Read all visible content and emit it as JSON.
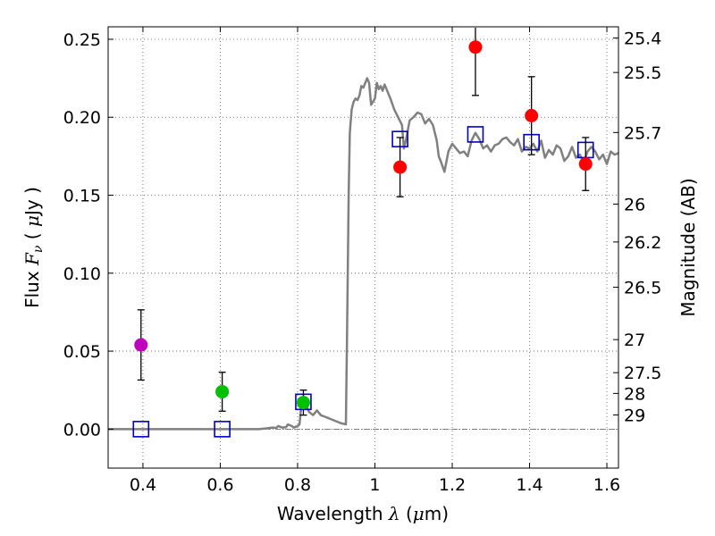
{
  "chart_data": {
    "type": "scatter",
    "xlabel_prefix": "Wavelength",
    "xlabel_symbol": "λ",
    "xlabel_unit_open": "(",
    "xlabel_unit_mu": "μ",
    "xlabel_unit_rest": "m)",
    "ylabel_prefix": "Flux",
    "ylabel_symbol": "F",
    "ylabel_subscript": "ν",
    "ylabel_unit_open": "(",
    "ylabel_unit_mu": "μ",
    "ylabel_unit_rest": "Jy )",
    "y2label": "Magnitude (AB)",
    "xlim": [
      0.31,
      1.63
    ],
    "ylim": [
      -0.025,
      0.258
    ],
    "grid": true,
    "xticks": [
      0.4,
      0.6,
      0.8,
      1.0,
      1.2,
      1.4,
      1.6
    ],
    "xtick_labels": [
      "0.4",
      "0.6",
      "0.8",
      "1",
      "1.2",
      "1.4",
      "1.6"
    ],
    "yticks": [
      0.0,
      0.05,
      0.1,
      0.15,
      0.2,
      0.25
    ],
    "ytick_labels": [
      "0.00",
      "0.05",
      "0.10",
      "0.15",
      "0.20",
      "0.25"
    ],
    "y2ticks": [
      {
        "label": "25.4",
        "flux": 0.2508
      },
      {
        "label": "25.5",
        "flux": 0.2287
      },
      {
        "label": "25.7",
        "flux": 0.1902
      },
      {
        "label": "26",
        "flux": 0.1443
      },
      {
        "label": "26.2",
        "flux": 0.12
      },
      {
        "label": "26.5",
        "flux": 0.091
      },
      {
        "label": "27",
        "flux": 0.0574
      },
      {
        "label": "27.5",
        "flux": 0.0362
      },
      {
        "label": "28",
        "flux": 0.0229
      },
      {
        "label": "29",
        "flux": 0.0091
      }
    ],
    "zero_line": 0.0,
    "observed": [
      {
        "x": 0.395,
        "y": 0.054,
        "err": 0.0225,
        "color": "#bf00bf"
      },
      {
        "x": 0.605,
        "y": 0.024,
        "err": 0.0125,
        "color": "#00c000"
      },
      {
        "x": 0.815,
        "y": 0.017,
        "err": 0.008,
        "color": "#00c000"
      },
      {
        "x": 1.065,
        "y": 0.168,
        "err": 0.019,
        "color": "#ff0000"
      },
      {
        "x": 1.26,
        "y": 0.245,
        "err": 0.031,
        "color": "#ff0000"
      },
      {
        "x": 1.405,
        "y": 0.201,
        "err": 0.025,
        "color": "#ff0000"
      },
      {
        "x": 1.545,
        "y": 0.17,
        "err": 0.017,
        "color": "#ff0000"
      }
    ],
    "model_points": {
      "color": "#0000c0",
      "x": [
        0.395,
        0.605,
        0.815,
        1.065,
        1.26,
        1.405,
        1.545
      ],
      "y": [
        0.0,
        0.0,
        0.0175,
        0.186,
        0.189,
        0.184,
        0.179
      ]
    },
    "template_sed": {
      "color": "#808080",
      "x": [
        0.31,
        0.7,
        0.72,
        0.735,
        0.745,
        0.75,
        0.76,
        0.77,
        0.775,
        0.785,
        0.79,
        0.8,
        0.805,
        0.81,
        0.815,
        0.82,
        0.83,
        0.84,
        0.85,
        0.86,
        0.87,
        0.88,
        0.89,
        0.9,
        0.91,
        0.925,
        0.928,
        0.932,
        0.935,
        0.94,
        0.945,
        0.95,
        0.955,
        0.96,
        0.965,
        0.97,
        0.975,
        0.98,
        0.985,
        0.99,
        0.995,
        1.0,
        1.005,
        1.01,
        1.015,
        1.02,
        1.025,
        1.03,
        1.04,
        1.05,
        1.06,
        1.07,
        1.075,
        1.08,
        1.09,
        1.1,
        1.11,
        1.12,
        1.13,
        1.14,
        1.15,
        1.16,
        1.165,
        1.17,
        1.18,
        1.19,
        1.2,
        1.21,
        1.22,
        1.23,
        1.24,
        1.25,
        1.26,
        1.27,
        1.28,
        1.29,
        1.3,
        1.31,
        1.32,
        1.33,
        1.34,
        1.35,
        1.36,
        1.37,
        1.38,
        1.39,
        1.4,
        1.41,
        1.42,
        1.43,
        1.44,
        1.45,
        1.46,
        1.47,
        1.48,
        1.49,
        1.5,
        1.51,
        1.52,
        1.53,
        1.54,
        1.55,
        1.56,
        1.57,
        1.58,
        1.59,
        1.6,
        1.61,
        1.62,
        1.63
      ],
      "y": [
        0.0,
        0.0,
        0.0005,
        0.001,
        0.0008,
        0.002,
        0.001,
        0.0012,
        0.003,
        0.002,
        0.001,
        0.002,
        0.003,
        0.016,
        0.021,
        0.016,
        0.011,
        0.009,
        0.012,
        0.009,
        0.008,
        0.007,
        0.006,
        0.005,
        0.004,
        0.003,
        0.06,
        0.15,
        0.19,
        0.205,
        0.21,
        0.212,
        0.211,
        0.214,
        0.22,
        0.219,
        0.222,
        0.225,
        0.222,
        0.208,
        0.21,
        0.212,
        0.222,
        0.218,
        0.22,
        0.217,
        0.221,
        0.218,
        0.212,
        0.205,
        0.2,
        0.195,
        0.18,
        0.185,
        0.198,
        0.2,
        0.203,
        0.202,
        0.196,
        0.199,
        0.195,
        0.185,
        0.175,
        0.172,
        0.165,
        0.178,
        0.183,
        0.18,
        0.177,
        0.178,
        0.175,
        0.185,
        0.19,
        0.186,
        0.18,
        0.182,
        0.178,
        0.182,
        0.183,
        0.186,
        0.187,
        0.184,
        0.182,
        0.186,
        0.178,
        0.181,
        0.18,
        0.183,
        0.178,
        0.185,
        0.174,
        0.179,
        0.176,
        0.182,
        0.18,
        0.172,
        0.175,
        0.181,
        0.174,
        0.176,
        0.171,
        0.178,
        0.181,
        0.178,
        0.173,
        0.176,
        0.17,
        0.178,
        0.176,
        0.177
      ]
    }
  }
}
